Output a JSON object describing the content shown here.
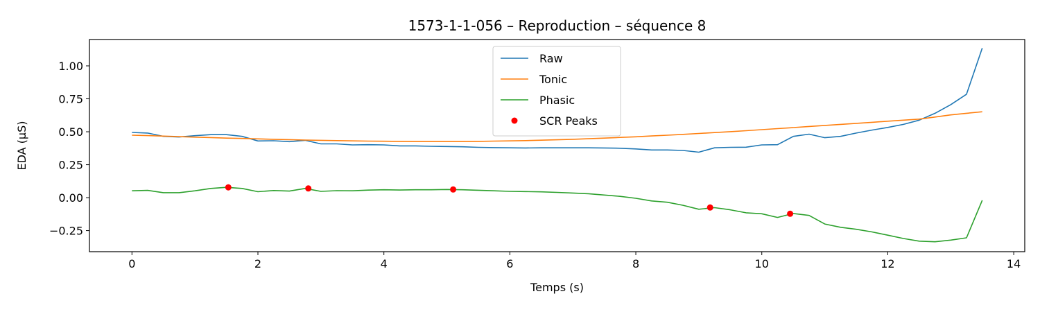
{
  "chart_data": {
    "type": "line",
    "title": "1573-1-1-056 – Reproduction – séquence 8",
    "xlabel": "Temps (s)",
    "ylabel": "EDA (µS)",
    "xlim": [
      -0.675,
      14.175
    ],
    "ylim": [
      -0.41,
      1.2
    ],
    "xticks": [
      0,
      2,
      4,
      6,
      8,
      10,
      12,
      14
    ],
    "xtick_labels": [
      "0",
      "2",
      "4",
      "6",
      "8",
      "10",
      "12",
      "14"
    ],
    "yticks": [
      -0.25,
      0,
      0.25,
      0.5,
      0.75,
      1.0
    ],
    "ytick_labels": [
      "−0.25",
      "0.00",
      "0.25",
      "0.50",
      "0.75",
      "1.00"
    ],
    "grid": false,
    "legend_position": "top-center",
    "series": [
      {
        "name": "Raw",
        "color": "#1f77b4",
        "x": [
          0,
          0.25,
          0.5,
          0.75,
          1.0,
          1.25,
          1.5,
          1.75,
          2.0,
          2.25,
          2.5,
          2.75,
          3.0,
          3.25,
          3.5,
          3.75,
          4.0,
          4.25,
          4.5,
          4.75,
          5.0,
          5.25,
          5.5,
          5.75,
          6.0,
          6.25,
          6.5,
          6.75,
          7.0,
          7.25,
          7.5,
          7.75,
          8.0,
          8.25,
          8.5,
          8.75,
          9.0,
          9.25,
          9.5,
          9.75,
          10.0,
          10.25,
          10.5,
          10.75,
          11.0,
          11.25,
          11.5,
          11.75,
          12.0,
          12.25,
          12.5,
          12.75,
          13.0,
          13.25,
          13.5
        ],
        "y": [
          0.495,
          0.49,
          0.465,
          0.46,
          0.47,
          0.478,
          0.478,
          0.465,
          0.43,
          0.432,
          0.425,
          0.435,
          0.408,
          0.408,
          0.4,
          0.402,
          0.4,
          0.393,
          0.393,
          0.39,
          0.388,
          0.386,
          0.382,
          0.38,
          0.378,
          0.377,
          0.378,
          0.378,
          0.378,
          0.378,
          0.377,
          0.375,
          0.37,
          0.362,
          0.362,
          0.358,
          0.345,
          0.378,
          0.382,
          0.383,
          0.4,
          0.402,
          0.465,
          0.482,
          0.455,
          0.465,
          0.49,
          0.513,
          0.533,
          0.556,
          0.588,
          0.64,
          0.706,
          0.785,
          1.135
        ]
      },
      {
        "name": "Tonic",
        "color": "#ff7f0e",
        "x": [
          0,
          0.25,
          0.5,
          0.75,
          1.0,
          1.25,
          1.5,
          1.75,
          2.0,
          2.25,
          2.5,
          2.75,
          3.0,
          3.25,
          3.5,
          3.75,
          4.0,
          4.25,
          4.5,
          4.75,
          5.0,
          5.25,
          5.5,
          5.75,
          6.0,
          6.25,
          6.5,
          6.75,
          7.0,
          7.25,
          7.5,
          7.75,
          8.0,
          8.25,
          8.5,
          8.75,
          9.0,
          9.25,
          9.5,
          9.75,
          10.0,
          10.25,
          10.5,
          10.75,
          11.0,
          11.25,
          11.5,
          11.75,
          12.0,
          12.25,
          12.5,
          12.75,
          13.0,
          13.25,
          13.5
        ],
        "y": [
          0.474,
          0.471,
          0.467,
          0.463,
          0.459,
          0.456,
          0.452,
          0.449,
          0.446,
          0.443,
          0.44,
          0.437,
          0.435,
          0.433,
          0.431,
          0.429,
          0.428,
          0.427,
          0.426,
          0.426,
          0.426,
          0.426,
          0.427,
          0.429,
          0.431,
          0.433,
          0.436,
          0.439,
          0.443,
          0.447,
          0.452,
          0.457,
          0.462,
          0.468,
          0.474,
          0.48,
          0.487,
          0.494,
          0.501,
          0.508,
          0.516,
          0.524,
          0.532,
          0.54,
          0.548,
          0.556,
          0.564,
          0.572,
          0.58,
          0.588,
          0.596,
          0.612,
          0.628,
          0.64,
          0.652
        ]
      },
      {
        "name": "Phasic",
        "color": "#2ca02c",
        "x": [
          0,
          0.25,
          0.5,
          0.75,
          1.0,
          1.25,
          1.5,
          1.75,
          2.0,
          2.25,
          2.5,
          2.75,
          3.0,
          3.25,
          3.5,
          3.75,
          4.0,
          4.25,
          4.5,
          4.75,
          5.0,
          5.25,
          5.5,
          5.75,
          6.0,
          6.25,
          6.5,
          6.75,
          7.0,
          7.25,
          7.5,
          7.75,
          8.0,
          8.25,
          8.5,
          8.75,
          9.0,
          9.25,
          9.5,
          9.75,
          10.0,
          10.25,
          10.5,
          10.75,
          11.0,
          11.25,
          11.5,
          11.75,
          12.0,
          12.25,
          12.5,
          12.75,
          13.0,
          13.25,
          13.5
        ],
        "y": [
          0.052,
          0.055,
          0.038,
          0.038,
          0.052,
          0.07,
          0.078,
          0.07,
          0.045,
          0.054,
          0.05,
          0.07,
          0.048,
          0.053,
          0.052,
          0.057,
          0.06,
          0.058,
          0.06,
          0.06,
          0.062,
          0.06,
          0.056,
          0.052,
          0.048,
          0.046,
          0.044,
          0.04,
          0.035,
          0.03,
          0.02,
          0.01,
          -0.005,
          -0.025,
          -0.035,
          -0.058,
          -0.088,
          -0.076,
          -0.092,
          -0.115,
          -0.122,
          -0.15,
          -0.12,
          -0.135,
          -0.2,
          -0.225,
          -0.24,
          -0.26,
          -0.285,
          -0.31,
          -0.33,
          -0.335,
          -0.322,
          -0.305,
          -0.02
        ]
      }
    ],
    "scr_peaks": {
      "name": "SCR Peaks",
      "color": "#ff0000",
      "x": [
        1.53,
        2.8,
        5.1,
        9.18,
        10.45
      ],
      "y": [
        0.078,
        0.07,
        0.062,
        -0.075,
        -0.122
      ]
    }
  }
}
